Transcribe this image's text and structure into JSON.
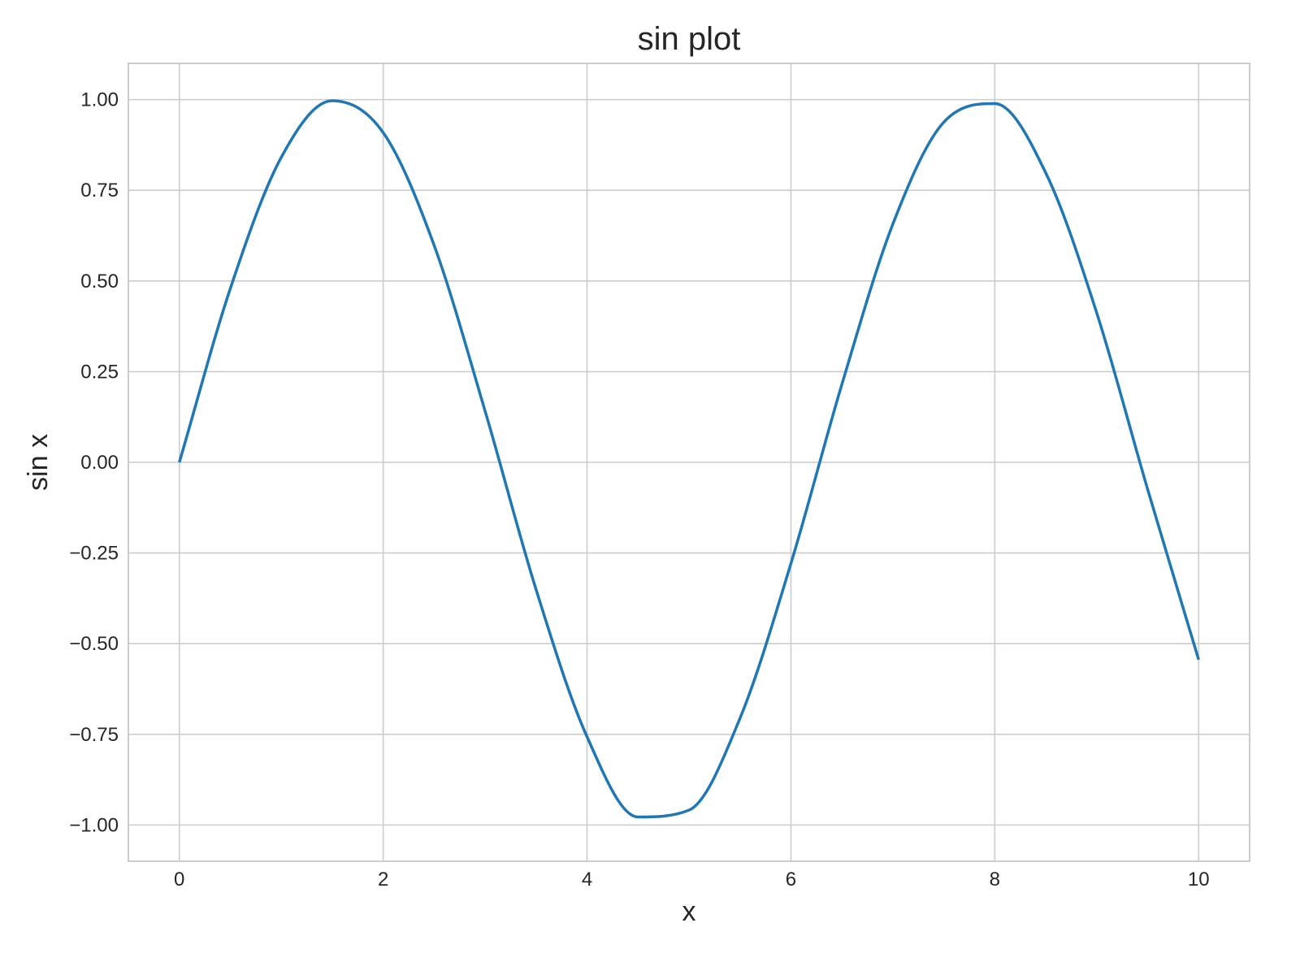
{
  "chart_data": {
    "type": "line",
    "title": "sin plot",
    "xlabel": "x",
    "ylabel": "sin x",
    "xlim": [
      -0.5,
      10.5
    ],
    "ylim": [
      -1.1,
      1.1
    ],
    "grid": true,
    "x_ticks": [
      0,
      2,
      4,
      6,
      8,
      10
    ],
    "x_tick_labels": [
      "0",
      "2",
      "4",
      "6",
      "8",
      "10"
    ],
    "y_ticks": [
      1.0,
      0.75,
      0.5,
      0.25,
      0.0,
      -0.25,
      -0.5,
      -0.75,
      -1.0
    ],
    "y_tick_labels": [
      "1.00",
      "0.75",
      "0.50",
      "0.25",
      "0.00",
      "−0.25",
      "−0.50",
      "−0.75",
      "−1.00"
    ],
    "series": [
      {
        "color": "#1f77b4",
        "x": [
          0,
          0.5,
          1,
          1.5,
          2,
          2.5,
          3,
          3.5,
          4,
          4.5,
          5,
          5.5,
          6,
          6.5,
          7,
          7.5,
          8,
          8.5,
          9,
          9.5,
          10
        ],
        "y": [
          0,
          0.479,
          0.841,
          0.997,
          0.909,
          0.598,
          0.141,
          -0.351,
          -0.757,
          -0.978,
          -0.959,
          -0.706,
          -0.279,
          0.215,
          0.657,
          0.938,
          0.989,
          0.798,
          0.412,
          -0.075,
          -0.544
        ]
      }
    ]
  }
}
